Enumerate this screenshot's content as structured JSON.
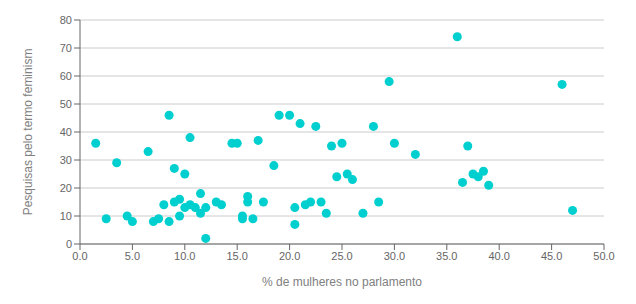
{
  "chart_data": {
    "type": "scatter",
    "xlabel": "% de mulheres no parlamento",
    "ylabel": "Pesquisas pelo termo feminism",
    "x": [
      1.5,
      2.5,
      3.5,
      4.5,
      5.0,
      6.5,
      7.0,
      7.5,
      8.0,
      8.5,
      8.5,
      9.0,
      9.0,
      9.5,
      9.5,
      10.0,
      10.0,
      10.5,
      10.5,
      11.0,
      11.5,
      11.5,
      12.0,
      12.0,
      13.0,
      13.5,
      14.5,
      15.0,
      15.5,
      15.5,
      16.0,
      16.0,
      16.5,
      17.0,
      17.5,
      18.5,
      19.0,
      20.0,
      20.5,
      20.5,
      21.0,
      21.5,
      22.0,
      22.5,
      23.0,
      23.5,
      24.0,
      24.5,
      25.0,
      25.5,
      26.0,
      27.0,
      28.0,
      28.5,
      29.5,
      30.0,
      32.0,
      36.0,
      36.5,
      37.0,
      37.5,
      38.0,
      38.5,
      39.0,
      46.0,
      47.0
    ],
    "values": [
      36,
      9,
      29,
      10,
      8,
      33,
      8,
      9,
      14,
      46,
      8,
      15,
      27,
      16,
      10,
      13,
      25,
      14,
      38,
      13,
      11,
      18,
      2,
      13,
      15,
      14,
      36,
      36,
      10,
      9,
      15,
      17,
      9,
      37,
      15,
      28,
      46,
      46,
      13,
      7,
      43,
      14,
      15,
      42,
      15,
      11,
      35,
      24,
      36,
      25,
      23,
      11,
      42,
      15,
      58,
      36,
      32,
      74,
      22,
      35,
      25,
      24,
      26,
      21,
      57,
      12
    ],
    "color": "#00CFCF",
    "xlim": [
      0.0,
      50.0
    ],
    "ylim": [
      0,
      80
    ],
    "xticks": [
      {
        "value": 0.0,
        "label": "0.0"
      },
      {
        "value": 5.0,
        "label": "5.0"
      },
      {
        "value": 10.0,
        "label": "10.0"
      },
      {
        "value": 15.0,
        "label": "15.0"
      },
      {
        "value": 20.0,
        "label": "20.0"
      },
      {
        "value": 25.0,
        "label": "25.0"
      },
      {
        "value": 30.0,
        "label": "30.0"
      },
      {
        "value": 35.0,
        "label": "35.0"
      },
      {
        "value": 40.0,
        "label": "40.0"
      },
      {
        "value": 45.0,
        "label": "45.0"
      },
      {
        "value": 50.0,
        "label": "50.0"
      }
    ],
    "yticks": [
      0,
      10,
      20,
      30,
      40,
      50,
      60,
      70,
      80
    ],
    "grid": true
  }
}
